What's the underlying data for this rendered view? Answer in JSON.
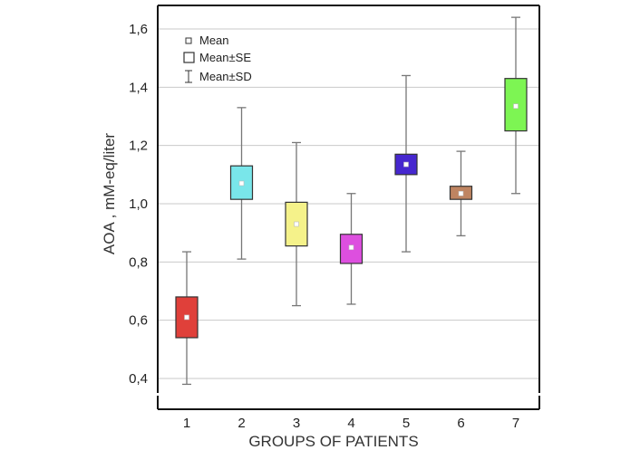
{
  "chart_data": {
    "type": "box",
    "xlabel": "GROUPS OF PATIENTS",
    "ylabel": "AOA , mM-eq/liter",
    "ylim": [
      0.35,
      1.67
    ],
    "yticks": [
      0.4,
      0.6,
      0.8,
      1.0,
      1.2,
      1.4,
      1.6
    ],
    "ytick_labels": [
      "0,4",
      "0,6",
      "0,8",
      "1,0",
      "1,2",
      "1,4",
      "1,6"
    ],
    "grid": true,
    "legend_position": "top-left",
    "legend": {
      "mean": "Mean",
      "se": "Mean±SE",
      "sd": "Mean±SD"
    },
    "categories": [
      "1",
      "2",
      "3",
      "4",
      "5",
      "6",
      "7"
    ],
    "series": [
      {
        "category": "1",
        "mean": 0.61,
        "se_low": 0.54,
        "se_high": 0.68,
        "sd_low": 0.38,
        "sd_high": 0.835,
        "color": "#e0403a"
      },
      {
        "category": "2",
        "mean": 1.07,
        "se_low": 1.015,
        "se_high": 1.13,
        "sd_low": 0.81,
        "sd_high": 1.33,
        "color": "#79e6ea"
      },
      {
        "category": "3",
        "mean": 0.93,
        "se_low": 0.855,
        "se_high": 1.005,
        "sd_low": 0.65,
        "sd_high": 1.21,
        "color": "#f5f28a"
      },
      {
        "category": "4",
        "mean": 0.85,
        "se_low": 0.795,
        "se_high": 0.895,
        "sd_low": 0.655,
        "sd_high": 1.035,
        "color": "#dd4fdf"
      },
      {
        "category": "5",
        "mean": 1.135,
        "se_low": 1.1,
        "se_high": 1.17,
        "sd_low": 0.835,
        "sd_high": 1.44,
        "color": "#4627cf"
      },
      {
        "category": "6",
        "mean": 1.035,
        "se_low": 1.015,
        "se_high": 1.06,
        "sd_low": 0.89,
        "sd_high": 1.18,
        "color": "#bf8461"
      },
      {
        "category": "7",
        "mean": 1.335,
        "se_low": 1.25,
        "se_high": 1.43,
        "sd_low": 1.035,
        "sd_high": 1.64,
        "color": "#7df553"
      }
    ]
  }
}
